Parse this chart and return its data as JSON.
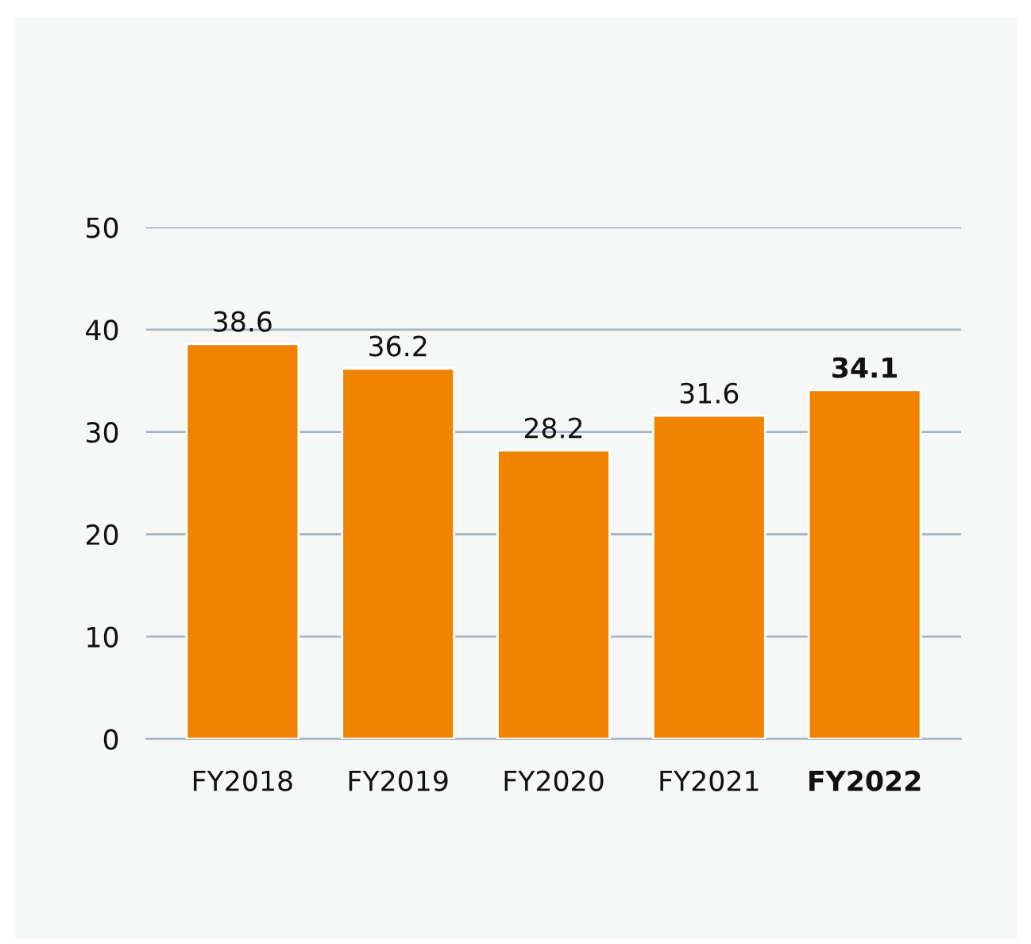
{
  "chart_data": {
    "type": "bar",
    "categories": [
      "FY2018",
      "FY2019",
      "FY2020",
      "FY2021",
      "FY2022"
    ],
    "values": [
      38.6,
      36.2,
      28.2,
      31.6,
      34.1
    ],
    "color": "#f08300",
    "ylim": [
      0,
      50
    ],
    "yticks": [
      0,
      10,
      20,
      30,
      40,
      50
    ],
    "grid": "y",
    "data_labels": true,
    "legend": false
  }
}
